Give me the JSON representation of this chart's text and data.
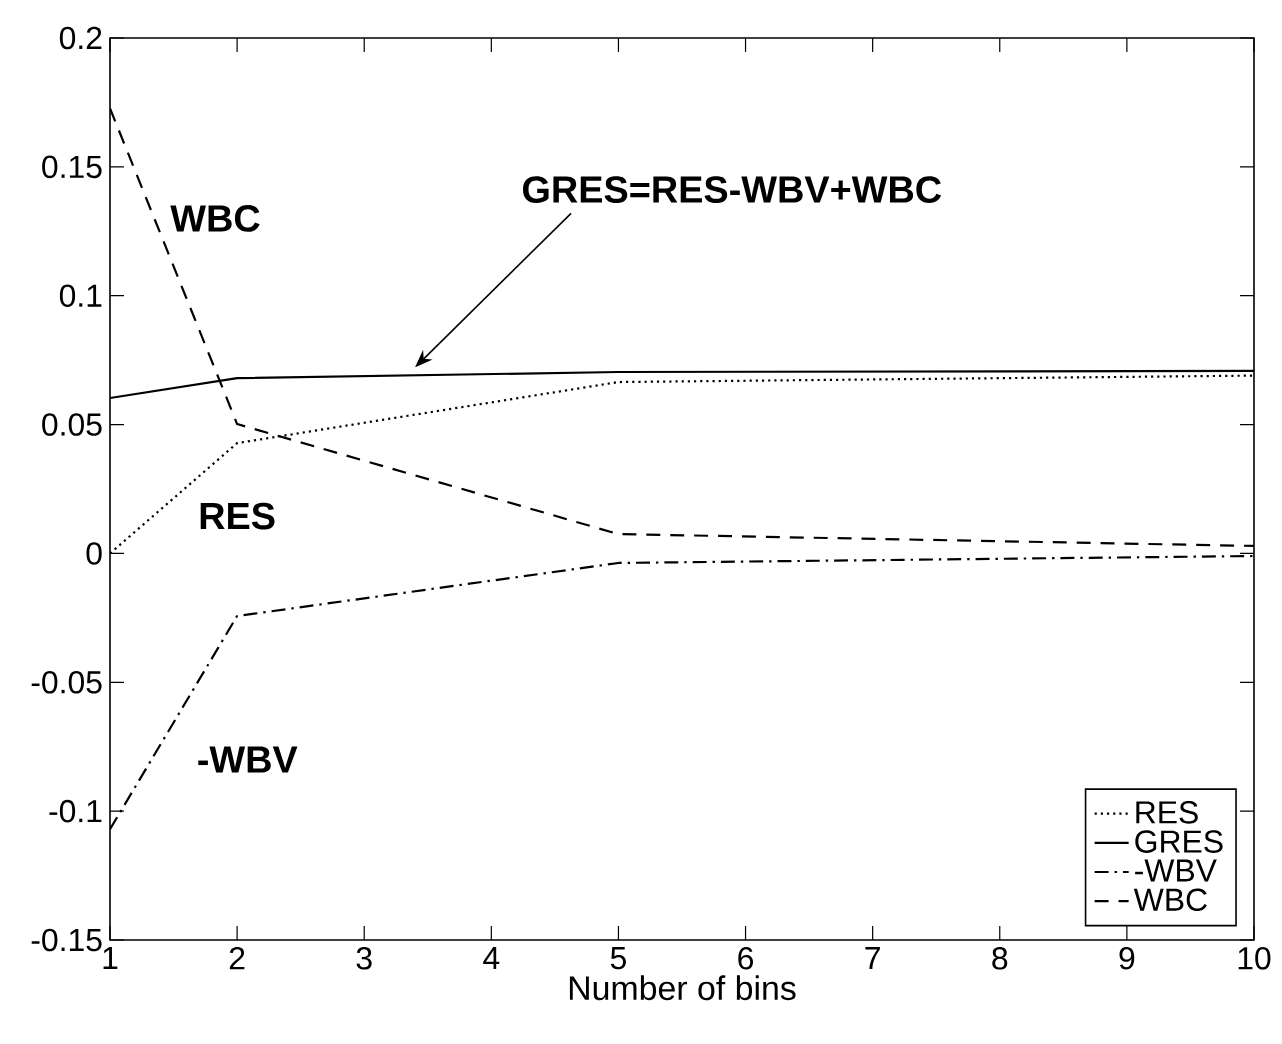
{
  "chart_data": {
    "type": "line",
    "xlabel": "Number of bins",
    "x": [
      1,
      2,
      5,
      10
    ],
    "series": [
      {
        "name": "RES",
        "color": "#000000",
        "line_style": "dotted",
        "values": [
          0.0,
          0.0428,
          0.0665,
          0.069
        ]
      },
      {
        "name": "GRES",
        "color": "#000000",
        "line_style": "solid",
        "values": [
          0.0603,
          0.068,
          0.0704,
          0.0708
        ]
      },
      {
        "name": "-WBV",
        "color": "#000000",
        "line_style": "dashdot",
        "values": [
          -0.107,
          -0.0243,
          -0.0037,
          -0.001
        ]
      },
      {
        "name": "WBC",
        "color": "#000000",
        "line_style": "dashed",
        "values": [
          0.1727,
          0.0502,
          0.0075,
          0.0029
        ]
      }
    ],
    "xlim": [
      1,
      10
    ],
    "ylim": [
      -0.15,
      0.2
    ],
    "xticks": [
      1,
      2,
      3,
      4,
      5,
      6,
      7,
      8,
      9,
      10
    ],
    "yticks": [
      -0.15,
      -0.1,
      -0.05,
      0,
      0.05,
      0.1,
      0.15,
      0.2
    ],
    "legend": "bottom right",
    "grid": false,
    "marker": "none",
    "annotations": [
      "WBC",
      "GRES=RES-WBV+WBC",
      "RES",
      "-WBV"
    ]
  }
}
